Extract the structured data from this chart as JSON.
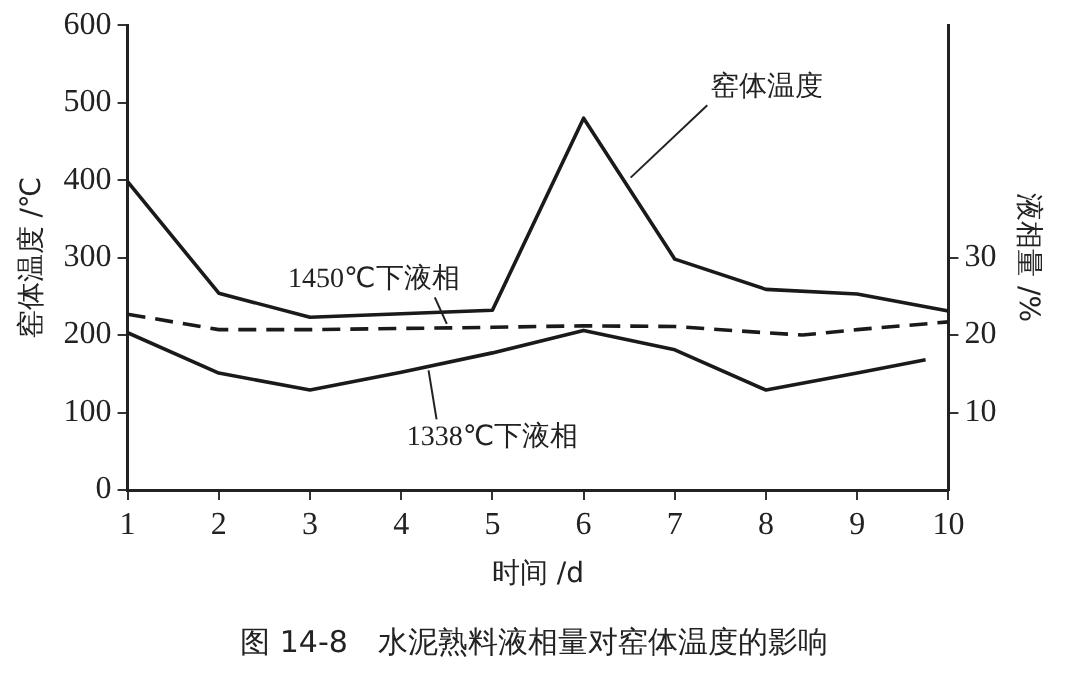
{
  "chart_data": {
    "type": "line",
    "title": "图 14-8　水泥熟料液相量对窑体温度的影响",
    "xlabel": "时间 /d",
    "ylabel": "窑体温度 /℃",
    "y2label": "液相量 /%",
    "xlim": [
      1,
      10
    ],
    "xticks": [
      1,
      2,
      3,
      4,
      5,
      6,
      7,
      8,
      9,
      10
    ],
    "ylim": [
      0,
      600
    ],
    "yticks": [
      0,
      100,
      200,
      300,
      400,
      500,
      600
    ],
    "y2lim": [
      0,
      60
    ],
    "y2ticks": [
      10,
      20,
      30
    ],
    "grid": false,
    "marker": "none",
    "series": [
      {
        "name": "窑体温度",
        "color": "#1a1a1a",
        "line_style": "solid",
        "x": [
          1,
          2,
          3,
          5,
          6,
          7,
          8,
          9,
          10
        ],
        "values": [
          398,
          254,
          223,
          232,
          480,
          298,
          259,
          253,
          231
        ]
      },
      {
        "name": "1450℃下液相",
        "color": "#1a1a1a",
        "line_style": "dashed",
        "axis": "y2",
        "x": [
          1,
          2,
          3,
          5,
          6,
          7,
          8,
          8.4,
          9,
          10
        ],
        "values": [
          22.7,
          20.7,
          20.7,
          21.0,
          21.2,
          21.1,
          20.3,
          20.0,
          20.7,
          21.7
        ]
      },
      {
        "name": "1338℃下液相",
        "color": "#1a1a1a",
        "line_style": "solid",
        "axis": "y2",
        "x": [
          1,
          2,
          3,
          4,
          5,
          6,
          7,
          8,
          9,
          9.75
        ],
        "values": [
          20.3,
          15.1,
          12.9,
          15.2,
          17.7,
          20.6,
          18.1,
          12.9,
          15.1,
          16.8
        ]
      }
    ]
  }
}
